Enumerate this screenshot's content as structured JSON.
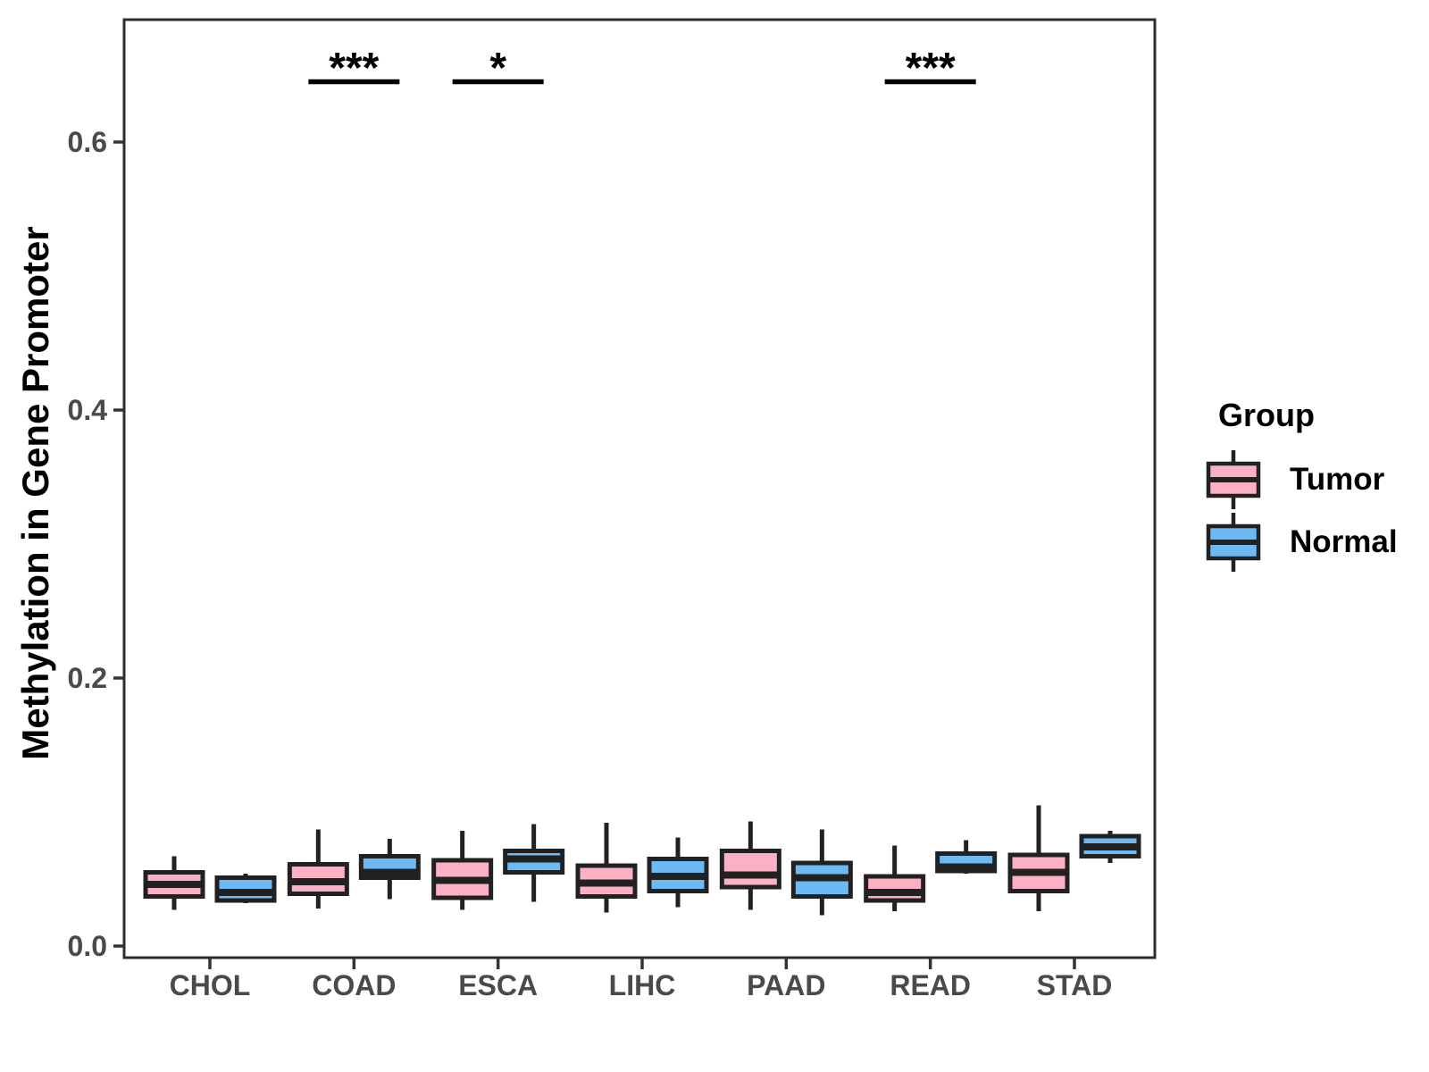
{
  "figure": {
    "background_color": "#FFFFFF"
  },
  "chart_data": {
    "type": "grouped_boxplot",
    "title": "",
    "xlabel": "",
    "ylabel": "Methylation in Gene Promoter",
    "categories": [
      "CHOL",
      "COAD",
      "ESCA",
      "LIHC",
      "PAAD",
      "READ",
      "STAD"
    ],
    "yticks": [
      0.0,
      0.2,
      0.4,
      0.6
    ],
    "ylim": [
      0.0,
      0.69
    ],
    "grid": "off",
    "legend": {
      "title": "Group",
      "position": "right",
      "entries": [
        {
          "name": "Tumor",
          "color": "#FBB0C3"
        },
        {
          "name": "Normal",
          "color": "#6CB9F4"
        }
      ]
    },
    "style": {
      "box_border_color": "#212121",
      "axis_border_color": "#2E2E2E",
      "tick_color": "#333333",
      "tick_label_color": "#4A4A4A",
      "significance_color": "#000000"
    },
    "series": [
      {
        "name": "Tumor",
        "color": "#FBB0C3",
        "boxes": [
          {
            "category": "CHOL",
            "whisker_low": 0.027,
            "q1": 0.037,
            "median": 0.046,
            "q3": 0.055,
            "whisker_high": 0.067
          },
          {
            "category": "COAD",
            "whisker_low": 0.028,
            "q1": 0.039,
            "median": 0.048,
            "q3": 0.061,
            "whisker_high": 0.087
          },
          {
            "category": "ESCA",
            "whisker_low": 0.027,
            "q1": 0.036,
            "median": 0.049,
            "q3": 0.064,
            "whisker_high": 0.086
          },
          {
            "category": "LIHC",
            "whisker_low": 0.025,
            "q1": 0.037,
            "median": 0.047,
            "q3": 0.06,
            "whisker_high": 0.092
          },
          {
            "category": "PAAD",
            "whisker_low": 0.027,
            "q1": 0.044,
            "median": 0.053,
            "q3": 0.071,
            "whisker_high": 0.093
          },
          {
            "category": "READ",
            "whisker_low": 0.026,
            "q1": 0.034,
            "median": 0.04,
            "q3": 0.052,
            "whisker_high": 0.075
          },
          {
            "category": "STAD",
            "whisker_low": 0.026,
            "q1": 0.041,
            "median": 0.055,
            "q3": 0.068,
            "whisker_high": 0.105
          }
        ]
      },
      {
        "name": "Normal",
        "color": "#6CB9F4",
        "boxes": [
          {
            "category": "CHOL",
            "whisker_low": 0.032,
            "q1": 0.034,
            "median": 0.04,
            "q3": 0.051,
            "whisker_high": 0.054
          },
          {
            "category": "COAD",
            "whisker_low": 0.035,
            "q1": 0.051,
            "median": 0.055,
            "q3": 0.067,
            "whisker_high": 0.08
          },
          {
            "category": "ESCA",
            "whisker_low": 0.033,
            "q1": 0.055,
            "median": 0.065,
            "q3": 0.071,
            "whisker_high": 0.091
          },
          {
            "category": "LIHC",
            "whisker_low": 0.029,
            "q1": 0.041,
            "median": 0.052,
            "q3": 0.065,
            "whisker_high": 0.081
          },
          {
            "category": "PAAD",
            "whisker_low": 0.023,
            "q1": 0.037,
            "median": 0.051,
            "q3": 0.062,
            "whisker_high": 0.087
          },
          {
            "category": "READ",
            "whisker_low": 0.054,
            "q1": 0.056,
            "median": 0.059,
            "q3": 0.069,
            "whisker_high": 0.079
          },
          {
            "category": "STAD",
            "whisker_low": 0.062,
            "q1": 0.067,
            "median": 0.074,
            "q3": 0.082,
            "whisker_high": 0.086
          }
        ]
      }
    ],
    "significance": [
      {
        "category": "COAD",
        "label": "***"
      },
      {
        "category": "ESCA",
        "label": "*"
      },
      {
        "category": "READ",
        "label": "***"
      }
    ]
  }
}
